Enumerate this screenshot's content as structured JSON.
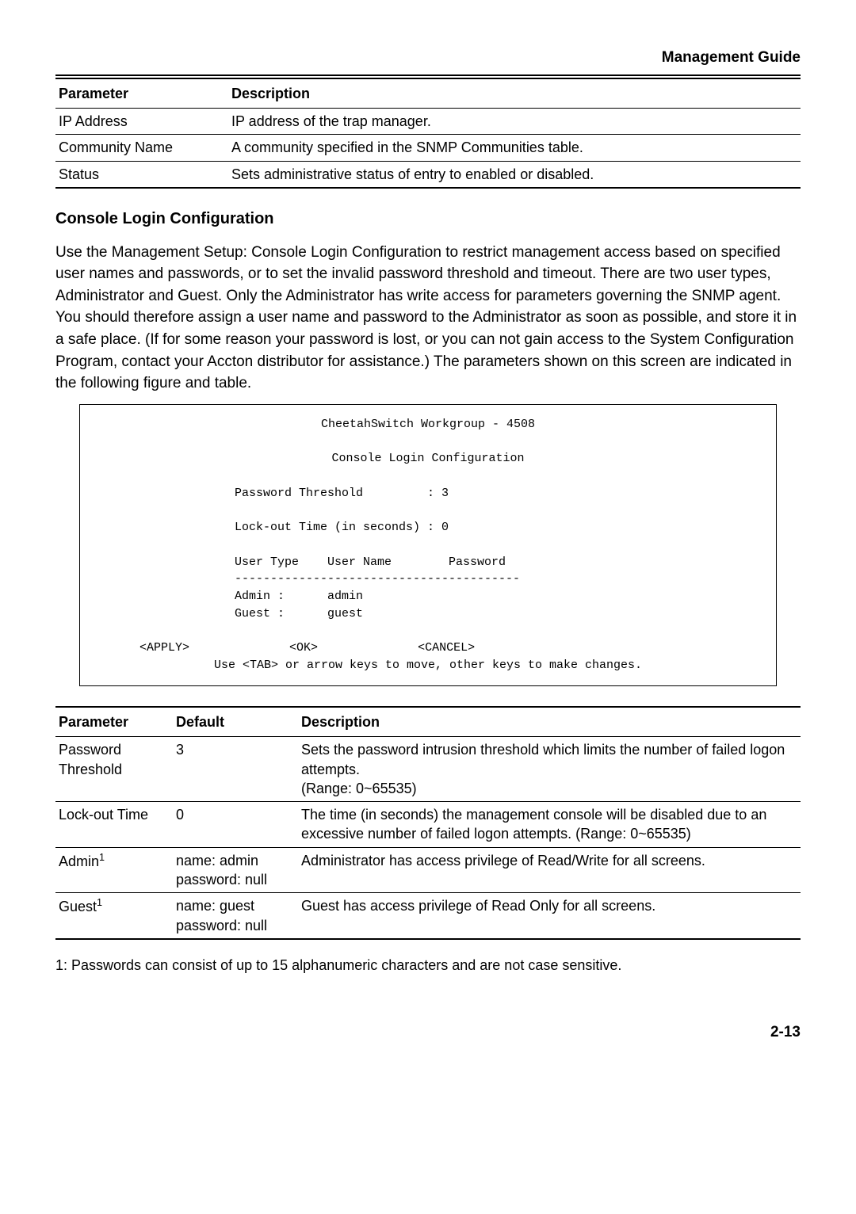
{
  "header": {
    "title": "Management Guide"
  },
  "table1": {
    "headers": [
      "Parameter",
      "Description"
    ],
    "rows": [
      [
        "IP Address",
        "IP address of the trap manager."
      ],
      [
        "Community Name",
        "A community specified in the SNMP Communities table."
      ],
      [
        "Status",
        "Sets administrative status of entry to enabled or disabled."
      ]
    ]
  },
  "section": {
    "heading": "Console Login Configuration"
  },
  "paragraph": "Use the Management Setup: Console Login Configuration to restrict management access based on specified user names and passwords, or to set the invalid password threshold and timeout. There are two user types, Administrator and Guest. Only the Administrator has write access for parameters governing the SNMP agent. You should therefore assign a user name and password to the Administrator as soon as possible, and store it in a safe place. (If for some reason your password is lost, or you can not gain access to the System Configuration Program, contact your Accton distributor for assistance.) The parameters shown on this screen are indicated in the following figure and table.",
  "terminal": {
    "title": "CheetahSwitch Workgroup - 4508",
    "subtitle": "Console Login Configuration",
    "line1": "Password Threshold         : 3",
    "line2": "Lock-out Time (in seconds) : 0",
    "line3": "User Type    User Name        Password",
    "divider": "----------------------------------------",
    "admin": "Admin :      admin",
    "guest": "Guest :      guest",
    "buttons": "     <APPLY>              <OK>              <CANCEL>",
    "help": "Use <TAB> or arrow keys to move, other keys to make changes."
  },
  "table2": {
    "headers": [
      "Parameter",
      "Default",
      "Description"
    ],
    "rows": [
      {
        "param": "Password Threshold",
        "default": "3",
        "desc": "Sets the password intrusion threshold which limits the number of failed logon attempts.\n(Range: 0~65535)"
      },
      {
        "param": "Lock-out Time",
        "default": "0",
        "desc": "The time (in seconds) the management console will be disabled due to an excessive number of failed logon attempts. (Range: 0~65535)"
      },
      {
        "param_html": "Admin",
        "sup": "1",
        "default": "name: admin\npassword: null",
        "desc": "Administrator has access privilege of Read/Write for all screens."
      },
      {
        "param_html": "Guest",
        "sup": "1",
        "default": "name: guest\npassword: null",
        "desc": "Guest has access privilege of Read Only for all screens."
      }
    ]
  },
  "footnote": "1: Passwords can consist of up to 15 alphanumeric characters and are not case sensitive.",
  "pagenum": "2-13"
}
